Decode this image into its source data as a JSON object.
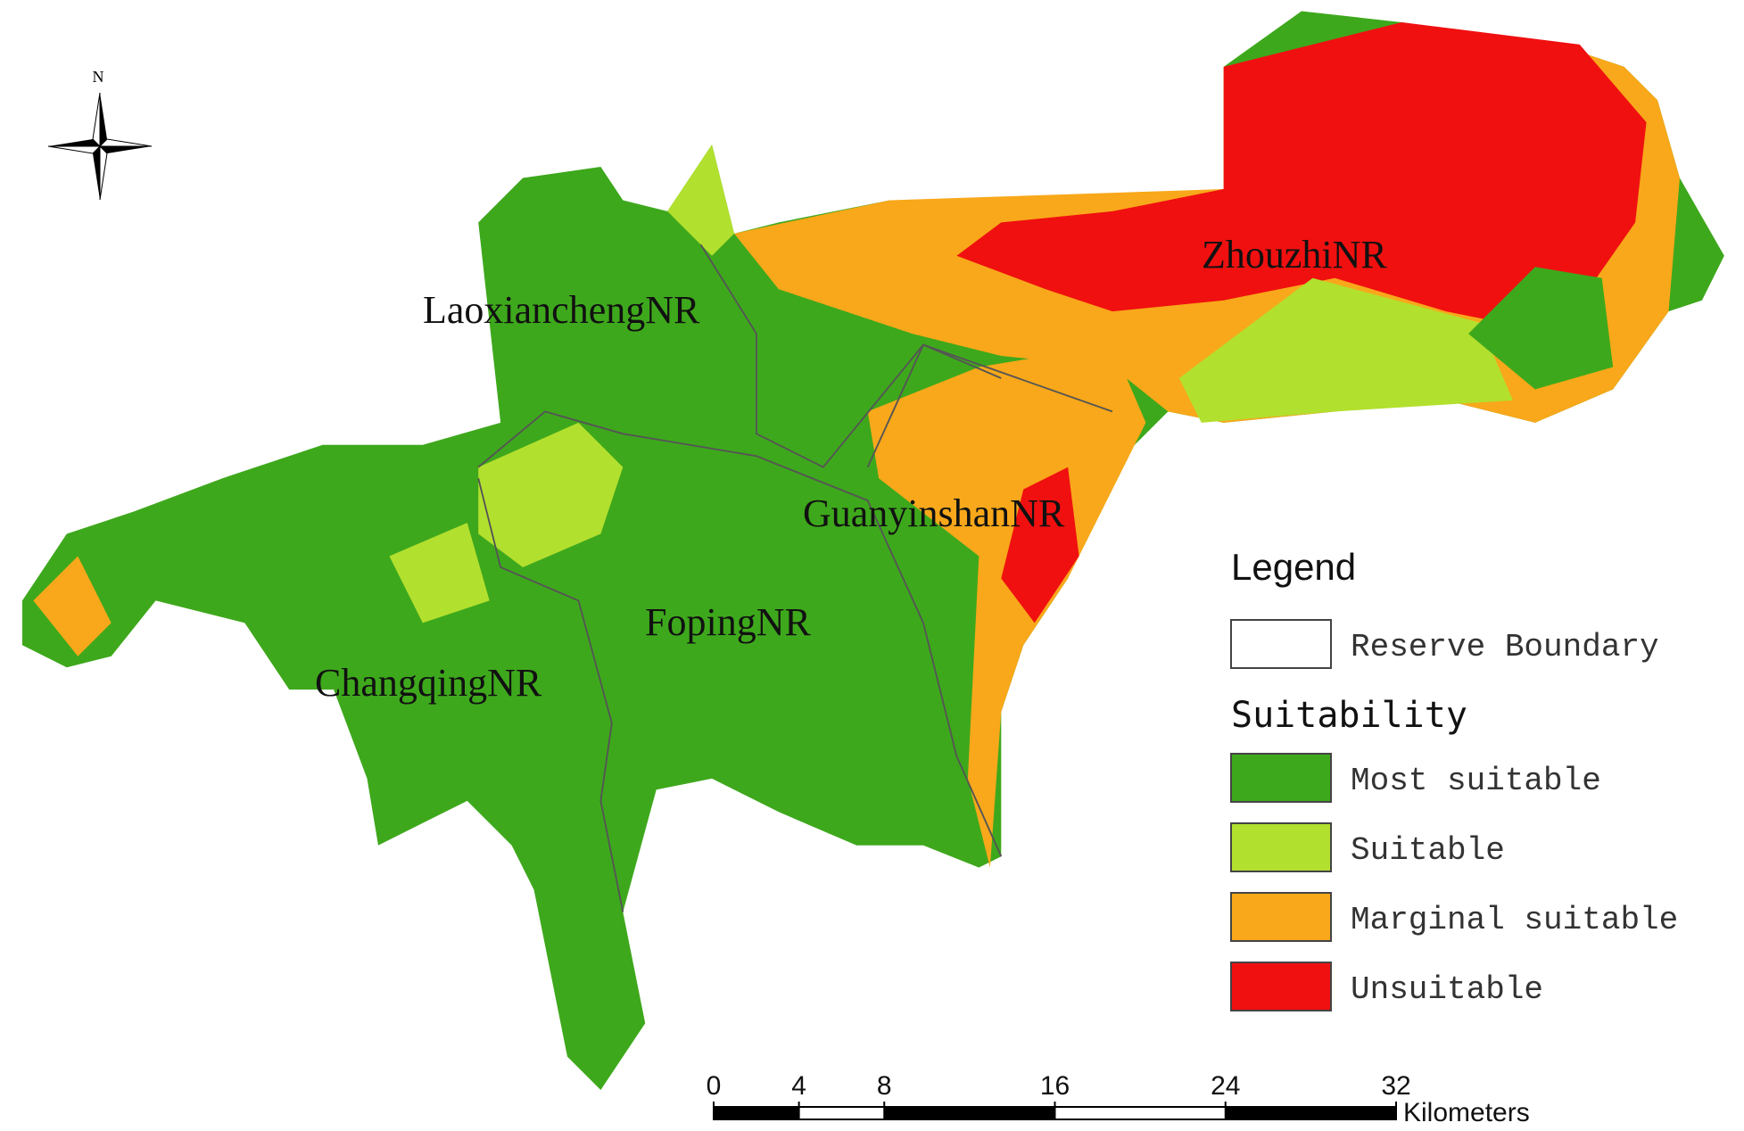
{
  "north_arrow": {
    "label": "N"
  },
  "map_labels": [
    "LaoxianchengNR",
    "ZhouzhiNR",
    "GuanyinshanNR",
    "FopingNR",
    "ChangqingNR"
  ],
  "legend": {
    "title": "Legend",
    "boundary": {
      "label": "Reserve Boundary"
    },
    "section_title": "Suitability",
    "items": [
      {
        "label": "Most suitable",
        "color": "#3ea81c"
      },
      {
        "label": "Suitable",
        "color": "#b2e02e"
      },
      {
        "label": "Marginal suitable",
        "color": "#f8a81a"
      },
      {
        "label": "Unsuitable",
        "color": "#f01010"
      }
    ]
  },
  "scale_bar": {
    "ticks": [
      0,
      4,
      8,
      16,
      24,
      32
    ],
    "lim": [
      0,
      32
    ],
    "unit": "Kilometers"
  }
}
